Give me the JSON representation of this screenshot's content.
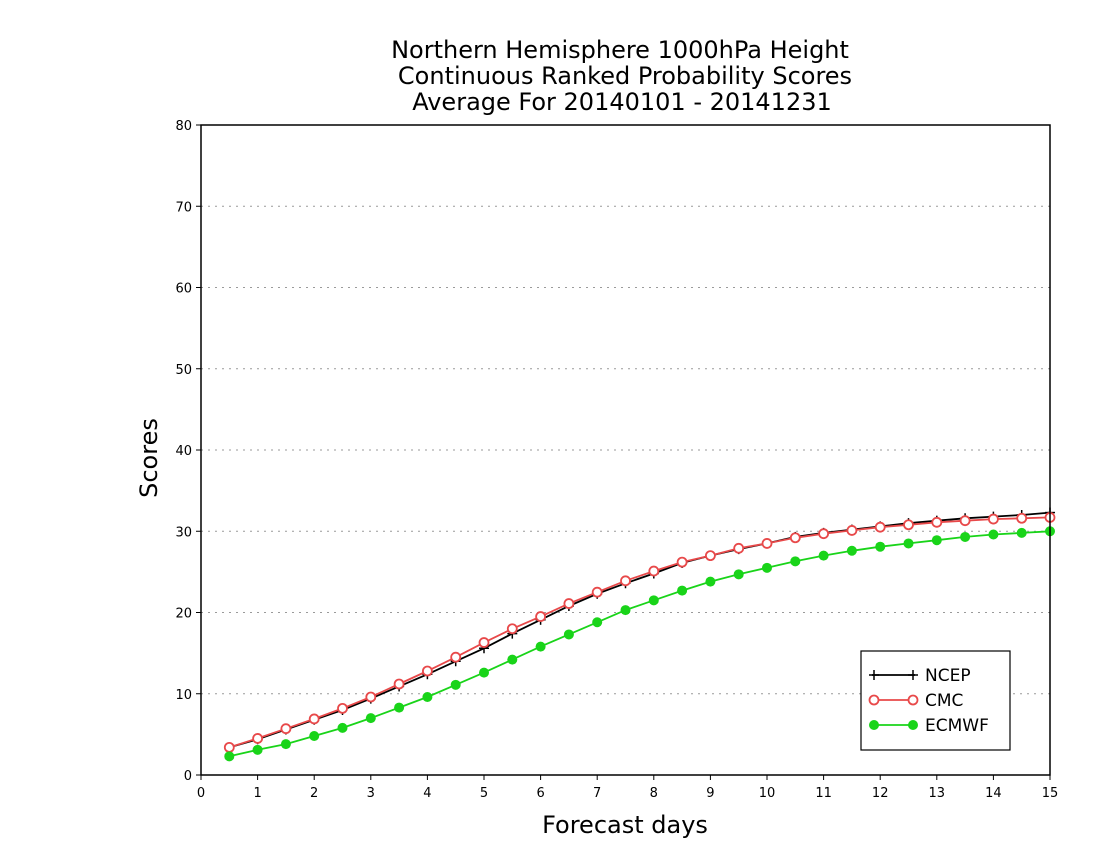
{
  "chart_data": {
    "type": "line",
    "title_lines": [
      "Northern Hemisphere 1000hPa Height",
      "Continuous Ranked Probability Scores",
      "Average For 20140101 - 20141231"
    ],
    "xlabel": "Forecast days",
    "ylabel": "Scores",
    "xlim": [
      0,
      15
    ],
    "ylim": [
      0,
      80
    ],
    "xticks": [
      0,
      1,
      2,
      3,
      4,
      5,
      6,
      7,
      8,
      9,
      10,
      11,
      12,
      13,
      14,
      15
    ],
    "yticks": [
      0,
      10,
      20,
      30,
      40,
      50,
      60,
      70,
      80
    ],
    "grid": "horizontal dotted",
    "legend_position": "bottom-right",
    "x": [
      0.5,
      1,
      1.5,
      2,
      2.5,
      3,
      3.5,
      4,
      4.5,
      5,
      5.5,
      6,
      6.5,
      7,
      7.5,
      8,
      8.5,
      9,
      9.5,
      10,
      10.5,
      11,
      11.5,
      12,
      12.5,
      13,
      13.5,
      14,
      14.5,
      15
    ],
    "series": [
      {
        "name": "NCEP",
        "color": "#000000",
        "marker": "plus",
        "values": [
          3.4,
          4.4,
          5.6,
          6.8,
          8.0,
          9.4,
          10.9,
          12.4,
          14.0,
          15.6,
          17.4,
          19.1,
          20.8,
          22.3,
          23.6,
          24.8,
          26.1,
          27.0,
          27.8,
          28.5,
          29.3,
          29.8,
          30.2,
          30.6,
          31.0,
          31.3,
          31.6,
          31.8,
          32.0,
          32.3
        ]
      },
      {
        "name": "CMC",
        "color": "#e8494a",
        "marker": "open-circle",
        "values": [
          3.4,
          4.5,
          5.7,
          6.9,
          8.2,
          9.6,
          11.2,
          12.8,
          14.5,
          16.3,
          18.0,
          19.5,
          21.1,
          22.5,
          23.9,
          25.1,
          26.2,
          27.0,
          27.9,
          28.5,
          29.2,
          29.7,
          30.1,
          30.5,
          30.8,
          31.1,
          31.3,
          31.5,
          31.6,
          31.7
        ]
      },
      {
        "name": "ECMWF",
        "color": "#19d419",
        "marker": "filled-circle",
        "values": [
          2.3,
          3.1,
          3.8,
          4.8,
          5.8,
          7.0,
          8.3,
          9.6,
          11.1,
          12.6,
          14.2,
          15.8,
          17.3,
          18.8,
          20.3,
          21.5,
          22.7,
          23.8,
          24.7,
          25.5,
          26.3,
          27.0,
          27.6,
          28.1,
          28.5,
          28.9,
          29.3,
          29.6,
          29.8,
          30.0
        ]
      }
    ]
  }
}
